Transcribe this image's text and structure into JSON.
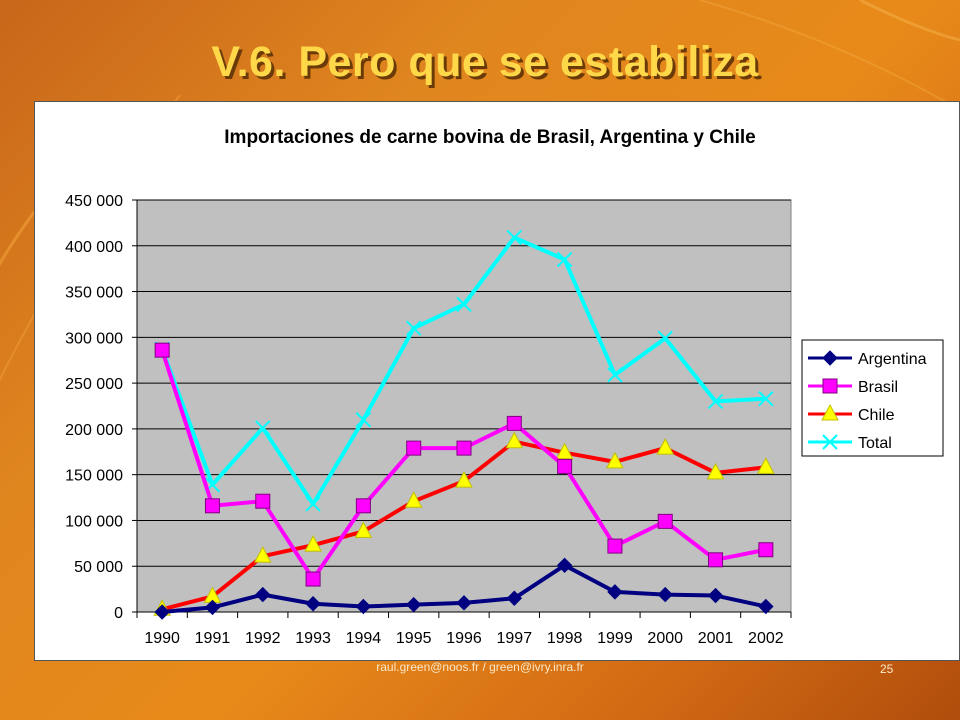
{
  "slide": {
    "title": "V.6. Pero que se estabiliza",
    "footer": "raul.green@noos.fr / green@ivry.inra.fr",
    "page_number": "25"
  },
  "chart_data": {
    "type": "line",
    "title": "Importaciones de carne bovina de Brasil, Argentina y Chile",
    "categories": [
      "1990",
      "1991",
      "1992",
      "1993",
      "1994",
      "1995",
      "1996",
      "1997",
      "1998",
      "1999",
      "2000",
      "2001",
      "2002"
    ],
    "ylim": [
      0,
      450000
    ],
    "yticks": [
      0,
      50000,
      100000,
      150000,
      200000,
      250000,
      300000,
      350000,
      400000,
      450000
    ],
    "ytick_labels": [
      "0",
      "50 000",
      "100 000",
      "150 000",
      "200 000",
      "250 000",
      "300 000",
      "350 000",
      "400 000",
      "450 000"
    ],
    "grid": true,
    "legend_position": "right",
    "series": [
      {
        "name": "Argentina",
        "color": "#000080",
        "marker": "diamond",
        "values": [
          0,
          5000,
          19000,
          9000,
          6000,
          8000,
          10000,
          15000,
          51000,
          22000,
          19000,
          18000,
          6000
        ]
      },
      {
        "name": "Brasil",
        "color": "#ff00ff",
        "marker": "square",
        "values": [
          286000,
          116000,
          121000,
          36000,
          116000,
          179000,
          179000,
          206000,
          159000,
          72000,
          99000,
          57000,
          68000
        ]
      },
      {
        "name": "Chile",
        "color": "#ff0000",
        "marker": "triangle",
        "values": [
          3000,
          17000,
          61000,
          73000,
          88000,
          121000,
          143000,
          186000,
          174000,
          164000,
          179000,
          152000,
          158000
        ]
      },
      {
        "name": "Total",
        "color": "#00ffff",
        "marker": "x",
        "values": [
          287000,
          139000,
          201000,
          118000,
          210000,
          310000,
          336000,
          409000,
          385000,
          259000,
          299000,
          230000,
          233000
        ]
      }
    ],
    "plot_background": "#c0c0c0"
  }
}
